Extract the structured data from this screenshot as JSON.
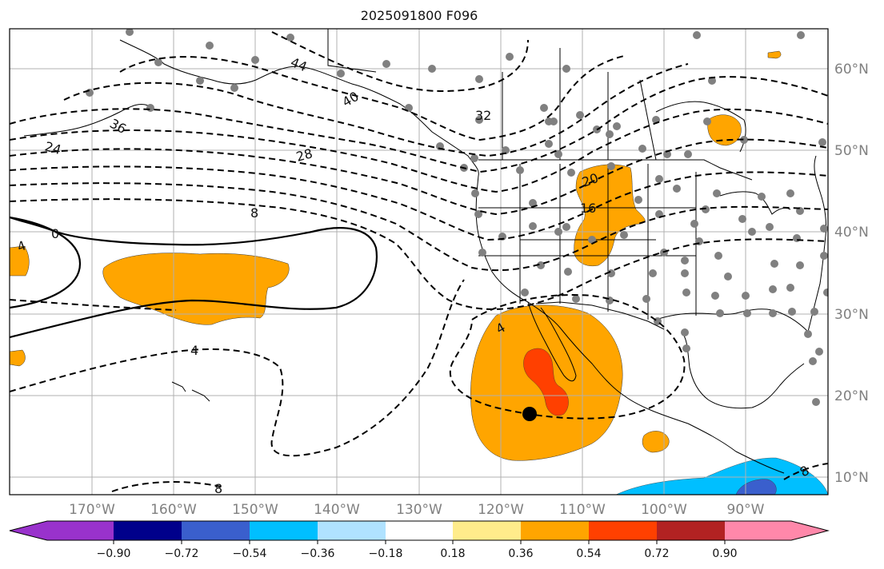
{
  "title": "2025091800 F096",
  "map": {
    "lon_labels": [
      "170°W",
      "160°W",
      "150°W",
      "140°W",
      "130°W",
      "120°W",
      "110°W",
      "100°W",
      "90°W"
    ],
    "lat_labels": [
      "60°N",
      "50°N",
      "40°N",
      "30°N",
      "20°N",
      "10°N"
    ]
  },
  "contour_labels": [
    "44",
    "40",
    "36",
    "32",
    "28",
    "24",
    "20",
    "16",
    "8",
    "4",
    "0",
    "4",
    "4",
    "8",
    "8"
  ],
  "colorbar": {
    "colors": [
      "#9932cc",
      "#00008b",
      "#3a5fcd",
      "#00bfff",
      "#b0e2ff",
      "#ffffff",
      "#ffec8b",
      "#ffa500",
      "#ff4000",
      "#b22222",
      "#ff88aa"
    ],
    "tick_labels": [
      "−0.90",
      "−0.72",
      "−0.54",
      "−0.36",
      "−0.18",
      "0.18",
      "0.36",
      "0.54",
      "0.72",
      "0.90"
    ]
  },
  "marker": {
    "name": "storm-center",
    "color": "#000000"
  }
}
